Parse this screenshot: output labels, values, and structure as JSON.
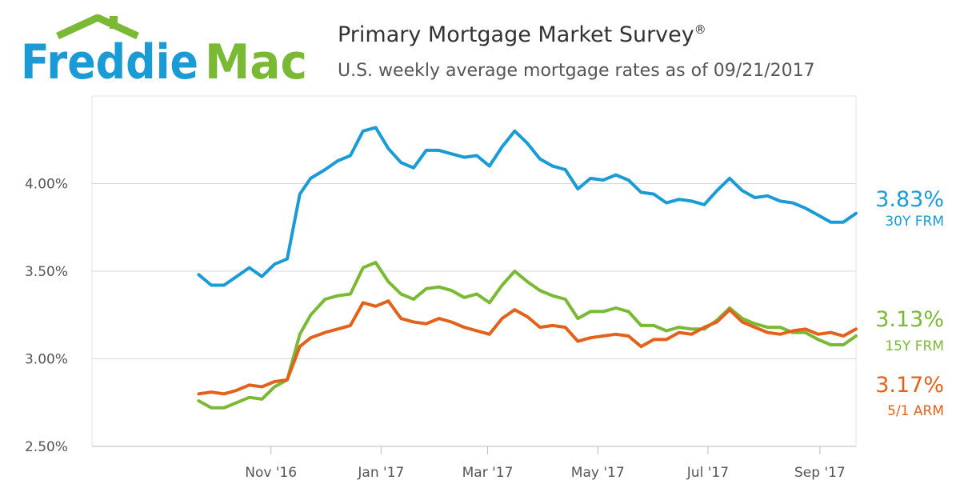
{
  "brand": {
    "logo_text": "Freddie Mac",
    "color_blue": "#1a9bd6",
    "color_green": "#7ab934"
  },
  "header": {
    "title": "Primary Mortgage Market Survey",
    "title_mark": "®",
    "subtitle": "U.S. weekly average mortgage rates as of 09/21/2017"
  },
  "chart_data": {
    "type": "line",
    "x_ticks": [
      "Nov '16",
      "Jan '17",
      "Mar '17",
      "May '17",
      "Jul '17",
      "Sep '17"
    ],
    "y_ticks": [
      "2.50%",
      "3.00%",
      "3.50%",
      "4.00%"
    ],
    "ylim": [
      2.5,
      4.5
    ],
    "grid": true,
    "x": [
      "2016-09-22",
      "2016-09-29",
      "2016-10-06",
      "2016-10-13",
      "2016-10-20",
      "2016-10-27",
      "2016-11-03",
      "2016-11-10",
      "2016-11-17",
      "2016-11-23",
      "2016-12-01",
      "2016-12-08",
      "2016-12-15",
      "2016-12-22",
      "2016-12-29",
      "2017-01-05",
      "2017-01-12",
      "2017-01-19",
      "2017-01-26",
      "2017-02-02",
      "2017-02-09",
      "2017-02-16",
      "2017-02-23",
      "2017-03-02",
      "2017-03-09",
      "2017-03-16",
      "2017-03-23",
      "2017-03-30",
      "2017-04-06",
      "2017-04-13",
      "2017-04-20",
      "2017-04-27",
      "2017-05-04",
      "2017-05-11",
      "2017-05-18",
      "2017-05-25",
      "2017-06-01",
      "2017-06-08",
      "2017-06-15",
      "2017-06-22",
      "2017-06-29",
      "2017-07-06",
      "2017-07-13",
      "2017-07-20",
      "2017-07-27",
      "2017-08-03",
      "2017-08-10",
      "2017-08-17",
      "2017-08-24",
      "2017-08-31",
      "2017-09-07",
      "2017-09-14",
      "2017-09-21"
    ],
    "series": [
      {
        "name": "30Y FRM",
        "color": "#1a9bd6",
        "last_value": "3.83%",
        "values": [
          3.48,
          3.42,
          3.42,
          3.47,
          3.52,
          3.47,
          3.54,
          3.57,
          3.94,
          4.03,
          4.08,
          4.13,
          4.16,
          4.3,
          4.32,
          4.2,
          4.12,
          4.09,
          4.19,
          4.19,
          4.17,
          4.15,
          4.16,
          4.1,
          4.21,
          4.3,
          4.23,
          4.14,
          4.1,
          4.08,
          3.97,
          4.03,
          4.02,
          4.05,
          4.02,
          3.95,
          3.94,
          3.89,
          3.91,
          3.9,
          3.88,
          3.96,
          4.03,
          3.96,
          3.92,
          3.93,
          3.9,
          3.89,
          3.86,
          3.82,
          3.78,
          3.78,
          3.83
        ]
      },
      {
        "name": "15Y FRM",
        "color": "#7ab934",
        "last_value": "3.13%",
        "values": [
          2.76,
          2.72,
          2.72,
          2.75,
          2.78,
          2.77,
          2.84,
          2.88,
          3.14,
          3.25,
          3.34,
          3.36,
          3.37,
          3.52,
          3.55,
          3.44,
          3.37,
          3.34,
          3.4,
          3.41,
          3.39,
          3.35,
          3.37,
          3.32,
          3.42,
          3.5,
          3.44,
          3.39,
          3.36,
          3.34,
          3.23,
          3.27,
          3.27,
          3.29,
          3.27,
          3.19,
          3.19,
          3.16,
          3.18,
          3.17,
          3.17,
          3.22,
          3.29,
          3.23,
          3.2,
          3.18,
          3.18,
          3.15,
          3.15,
          3.11,
          3.08,
          3.08,
          3.13
        ]
      },
      {
        "name": "5/1 ARM",
        "color": "#e2621c",
        "last_value": "3.17%",
        "values": [
          2.8,
          2.81,
          2.8,
          2.82,
          2.85,
          2.84,
          2.87,
          2.88,
          3.07,
          3.12,
          3.15,
          3.17,
          3.19,
          3.32,
          3.3,
          3.33,
          3.23,
          3.21,
          3.2,
          3.23,
          3.21,
          3.18,
          3.16,
          3.14,
          3.23,
          3.28,
          3.24,
          3.18,
          3.19,
          3.18,
          3.1,
          3.12,
          3.13,
          3.14,
          3.13,
          3.07,
          3.11,
          3.11,
          3.15,
          3.14,
          3.18,
          3.21,
          3.28,
          3.21,
          3.18,
          3.15,
          3.14,
          3.16,
          3.17,
          3.14,
          3.15,
          3.13,
          3.17
        ]
      }
    ]
  }
}
